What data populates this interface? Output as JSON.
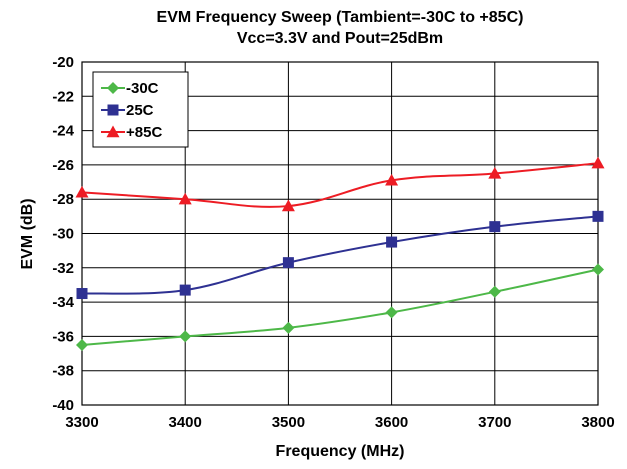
{
  "chart_data": {
    "type": "line",
    "title": "EVM Frequency Sweep (Tambient=-30C to +85C)",
    "subtitle": "Vcc=3.3V and Pout=25dBm",
    "xlabel": "Frequency (MHz)",
    "ylabel": "EVM (dB)",
    "xlim": [
      3300,
      3800
    ],
    "ylim": [
      -40,
      -20
    ],
    "x_ticks": [
      "3300",
      "3400",
      "3500",
      "3600",
      "3700",
      "3800"
    ],
    "y_ticks": [
      "-20",
      "-22",
      "-24",
      "-26",
      "-28",
      "-30",
      "-32",
      "-34",
      "-36",
      "-38",
      "-40"
    ],
    "grid": true,
    "legend_position": "top-left",
    "x": [
      3300,
      3400,
      3500,
      3600,
      3700,
      3800
    ],
    "series": [
      {
        "name": "-30C",
        "color": "#4db848",
        "marker": "diamond",
        "values": [
          -36.5,
          -36.0,
          -35.5,
          -34.6,
          -33.4,
          -32.1
        ]
      },
      {
        "name": "25C",
        "color": "#2e3192",
        "marker": "square",
        "values": [
          -33.5,
          -33.3,
          -31.7,
          -30.5,
          -29.6,
          -29.0
        ]
      },
      {
        "name": "+85C",
        "color": "#ed1c24",
        "marker": "triangle",
        "values": [
          -27.6,
          -28.0,
          -28.4,
          -26.9,
          -26.5,
          -25.9
        ]
      }
    ]
  }
}
